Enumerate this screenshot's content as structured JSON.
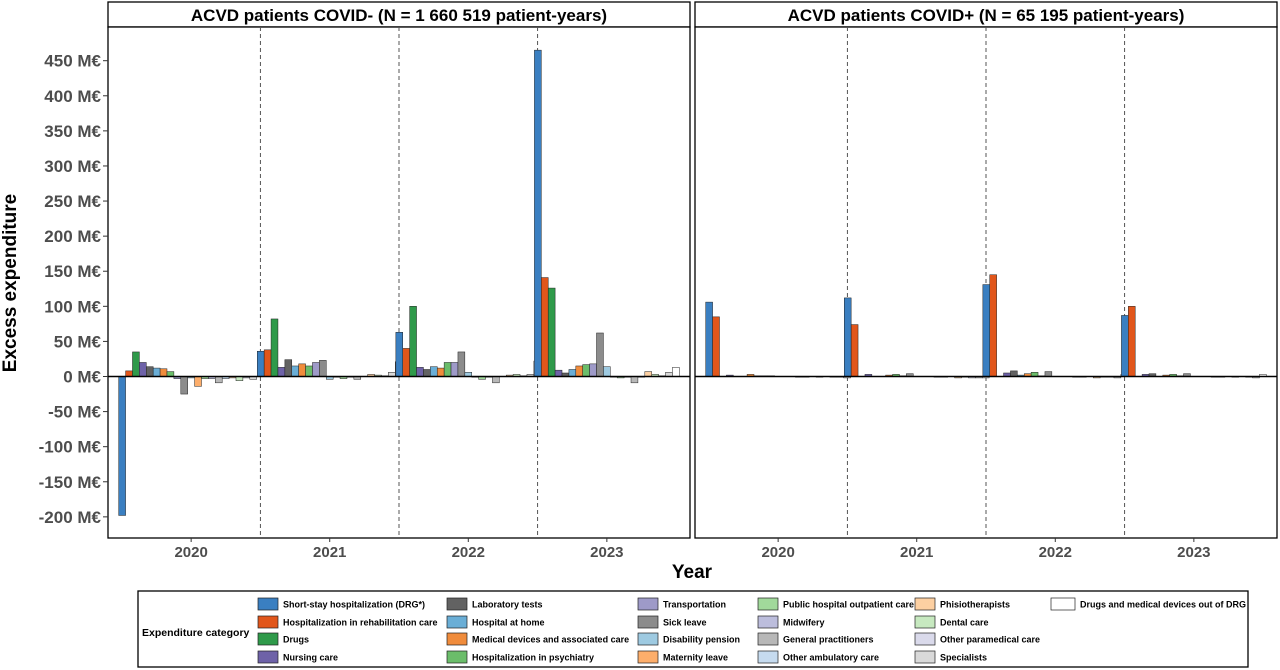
{
  "chart_data": {
    "type": "bar",
    "ylabel": "Excess expenditure",
    "xlabel": "Year",
    "y_unit_suffix": " M€",
    "ylim": [
      -230,
      460
    ],
    "yticks": [
      -200,
      -150,
      -100,
      -50,
      0,
      50,
      100,
      150,
      200,
      250,
      300,
      350,
      400,
      450
    ],
    "categories": [
      "2020",
      "2021",
      "2022",
      "2023"
    ],
    "legend": {
      "title": "Expenditure category",
      "placement": "bottom",
      "entries": [
        {
          "name": "Short-stay hospitalization (DRG*)",
          "color": "#3a7fc1"
        },
        {
          "name": "Hospitalization in rehabilitation care",
          "color": "#e1561b"
        },
        {
          "name": "Drugs",
          "color": "#2f9a4a"
        },
        {
          "name": "Nursing care",
          "color": "#6e62a8"
        },
        {
          "name": "Laboratory tests",
          "color": "#626262"
        },
        {
          "name": "Hospital at home",
          "color": "#6aaed6"
        },
        {
          "name": "Medical devices and associated care",
          "color": "#f08c3c"
        },
        {
          "name": "Hospitalization in psychiatry",
          "color": "#6bbd6a"
        },
        {
          "name": "Transportation",
          "color": "#9e9ac8"
        },
        {
          "name": "Sick leave",
          "color": "#8c8c8c"
        },
        {
          "name": "Disability pension",
          "color": "#9ecae1"
        },
        {
          "name": "Maternity leave",
          "color": "#fdae6b"
        },
        {
          "name": "Public hospital outpatient care",
          "color": "#a1d99b"
        },
        {
          "name": "Midwifery",
          "color": "#bcbddc"
        },
        {
          "name": "General practitioners",
          "color": "#b8b8b8"
        },
        {
          "name": "Other ambulatory care",
          "color": "#c6dbef"
        },
        {
          "name": "Phisiotherapists",
          "color": "#fdd0a2"
        },
        {
          "name": "Dental care",
          "color": "#c7e9c0"
        },
        {
          "name": "Other paramedical care",
          "color": "#dadaeb"
        },
        {
          "name": "Specialists",
          "color": "#d9d9d9"
        },
        {
          "name": "Drugs and medical devices out of DRG",
          "color": "#ffffff"
        }
      ]
    },
    "panels": [
      {
        "title": "ACVD patients COVID- (N = 1 660 519 patient-years)",
        "values": [
          [
            -198,
            8,
            35,
            20,
            14,
            12,
            11,
            7,
            -3,
            -25,
            -2,
            -14,
            -3,
            -3,
            -9,
            -3,
            -2,
            -6,
            -2,
            -4,
            0
          ],
          [
            36,
            38,
            82,
            13,
            24,
            15,
            18,
            15,
            20,
            23,
            -4,
            -1,
            -3,
            -1,
            -4,
            0,
            3,
            2,
            1,
            6,
            21
          ],
          [
            63,
            40,
            100,
            13,
            10,
            14,
            12,
            20,
            20,
            35,
            6,
            -1,
            -4,
            -1,
            -9,
            0,
            2,
            3,
            1,
            3,
            22
          ],
          [
            465,
            141,
            126,
            9,
            5,
            10,
            15,
            17,
            18,
            62,
            14,
            -1,
            -2,
            -1,
            -9,
            -1,
            7,
            3,
            1,
            6,
            13
          ]
        ]
      },
      {
        "title": "ACVD patients COVID+ (N = 65 195 patient-years)",
        "values": [
          [
            106,
            85,
            0,
            2,
            0,
            0,
            3,
            1,
            1,
            1,
            0,
            0,
            0,
            -1,
            -1,
            0,
            -1,
            0,
            -1,
            -1,
            -2
          ],
          [
            112,
            74,
            0,
            3,
            0,
            0,
            2,
            3,
            1,
            4,
            0,
            0,
            0,
            -1,
            -1,
            0,
            -2,
            -1,
            -2,
            -2,
            -2
          ],
          [
            131,
            145,
            0,
            5,
            8,
            2,
            4,
            6,
            1,
            7,
            0,
            0,
            0,
            -1,
            -1,
            0,
            -2,
            -1,
            -1,
            -2,
            3
          ],
          [
            87,
            100,
            0,
            3,
            4,
            0,
            2,
            3,
            1,
            4,
            0,
            0,
            0,
            -1,
            -1,
            0,
            -1,
            0,
            -1,
            -2,
            3
          ]
        ]
      }
    ]
  }
}
